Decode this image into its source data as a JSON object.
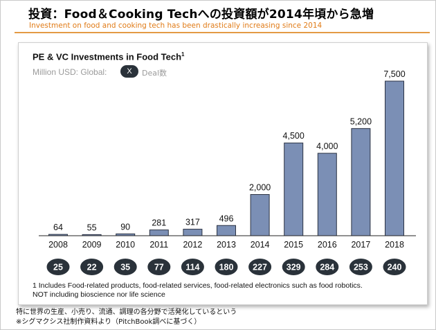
{
  "slide": {
    "title": "投資：Food＆Cooking Techへの投資額が2014年頃から急増",
    "subtitle": "Investment on food and cooking tech has been drastically increasing since 2014",
    "accent_color": "#e07b17"
  },
  "chart_title": "PE & VC Investments in Food Tech",
  "chart_title_footnote_mark": "1",
  "units_label": "Million USD: Global:",
  "badge_symbol": "X",
  "deal_label": "Deal数",
  "chart_data": {
    "type": "bar",
    "categories": [
      "2008",
      "2009",
      "2010",
      "2011",
      "2012",
      "2013",
      "2014",
      "2015",
      "2016",
      "2017",
      "2018"
    ],
    "values": [
      64,
      55,
      90,
      281,
      317,
      496,
      2000,
      4500,
      4000,
      5200,
      7500
    ],
    "value_labels": [
      "64",
      "55",
      "90",
      "281",
      "317",
      "496",
      "2,000",
      "4,500",
      "4,000",
      "5,200",
      "7,500"
    ],
    "deal_counts": [
      "25",
      "22",
      "35",
      "77",
      "114",
      "180",
      "227",
      "329",
      "284",
      "253",
      "240"
    ],
    "ylim": [
      0,
      7500
    ],
    "grid": false,
    "bar_color": "#7b8fb5",
    "bar_stroke": "#2b3242",
    "badge_color": "#2a323a"
  },
  "footnote": {
    "line1": "1 Includes Food-related products, food-related services, food-related electronics such as food robotics.",
    "line2": "NOT including bioscience nor life science"
  },
  "notes": {
    "line1": "特に世界の生産、小売り、流通、調理の各分野で活発化しているという",
    "line2": "※シグマクシス社制作資料より（PitchBook調べに基づく）"
  }
}
